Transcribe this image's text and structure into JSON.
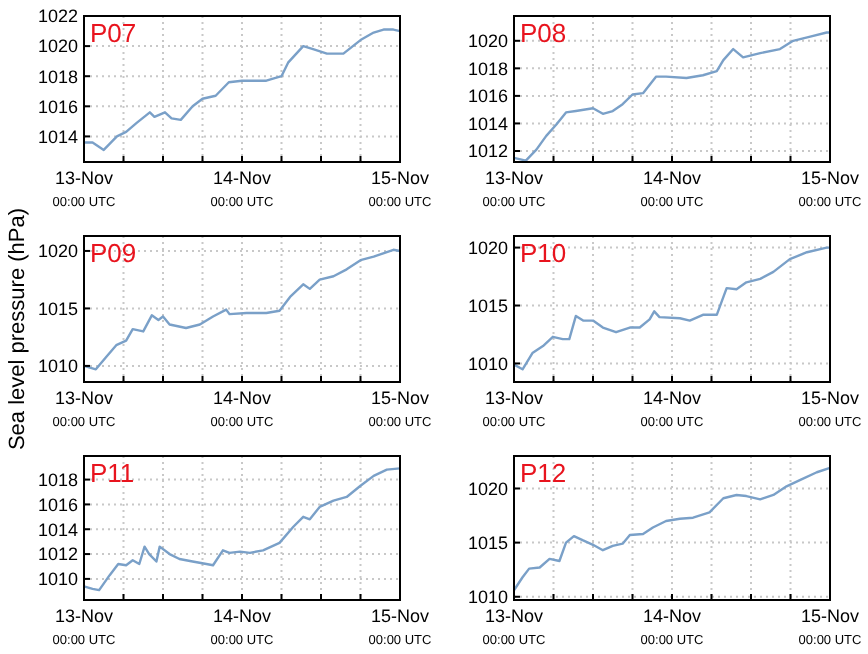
{
  "chart_data": [
    {
      "type": "line",
      "title": "P07",
      "color": "#7aa0c8",
      "grid": true,
      "xlim": [
        "--11-13T00:00",
        "--11-15T00:00"
      ],
      "ylim": [
        1012.3,
        1022
      ],
      "yticks": [
        1014,
        1016,
        1018,
        1020,
        1022
      ],
      "xticks": [
        {
          "value": "--11-13T00:00",
          "label": "13-Nov 00:00 UTC"
        },
        {
          "value": "--11-13T06:00",
          "label": null
        },
        {
          "value": "--11-13T12:00",
          "label": null
        },
        {
          "value": "--11-13T18:00",
          "label": null
        },
        {
          "value": "--11-14T00:00",
          "label": "14-Nov 00:00 UTC"
        },
        {
          "value": "--11-14T06:00",
          "label": null
        },
        {
          "value": "--11-14T12:00",
          "label": null
        },
        {
          "value": "--11-14T18:00",
          "label": null
        },
        {
          "value": "--11-15T00:00",
          "label": "15-Nov 00:00 UTC"
        }
      ],
      "x": [
        "--11-13T00:00",
        "--11-13T01:18",
        "--11-13T03:00",
        "--11-13T05:00",
        "--11-13T06:24",
        "--11-13T08:00",
        "--11-13T10:00",
        "--11-13T10:42",
        "--11-13T12:18",
        "--11-13T13:18",
        "--11-13T14:42",
        "--11-13T16:30",
        "--11-13T18:00",
        "--11-13T20:00",
        "--11-13T22:00",
        "--11-14T00:00",
        "--11-14T03:42",
        "--11-14T06:00",
        "--11-14T07:00",
        "--11-14T09:18",
        "--11-14T10:48",
        "--11-14T12:54",
        "--11-14T15:24",
        "--11-14T18:00",
        "--11-14T20:00",
        "--11-14T21:30",
        "--11-14T23:00",
        "--11-15T00:00"
      ],
      "values": [
        1013.6,
        1013.6,
        1013.1,
        1014,
        1014.3,
        1014.9,
        1015.6,
        1015.3,
        1015.6,
        1015.2,
        1015.1,
        1016,
        1016.5,
        1016.7,
        1017.6,
        1017.7,
        1017.7,
        1018,
        1018.9,
        1020,
        1019.8,
        1019.5,
        1019.5,
        1020.4,
        1020.9,
        1021.1,
        1021.1,
        1021
      ]
    },
    {
      "type": "line",
      "title": "P08",
      "color": "#7aa0c8",
      "grid": true,
      "xlim": [
        "--11-13T00:00",
        "--11-15T00:00"
      ],
      "ylim": [
        1011.2,
        1021.8
      ],
      "yticks": [
        1012,
        1014,
        1016,
        1018,
        1020
      ],
      "xticks": [
        {
          "value": "--11-13T00:00",
          "label": "13-Nov 00:00 UTC"
        },
        {
          "value": "--11-13T06:00",
          "label": null
        },
        {
          "value": "--11-13T12:00",
          "label": null
        },
        {
          "value": "--11-13T18:00",
          "label": null
        },
        {
          "value": "--11-14T00:00",
          "label": "14-Nov 00:00 UTC"
        },
        {
          "value": "--11-14T06:00",
          "label": null
        },
        {
          "value": "--11-14T12:00",
          "label": null
        },
        {
          "value": "--11-14T18:00",
          "label": null
        },
        {
          "value": "--11-15T00:00",
          "label": "15-Nov 00:00 UTC"
        }
      ],
      "x": [
        "--11-13T00:00",
        "--11-13T01:48",
        "--11-13T03:24",
        "--11-13T04:54",
        "--11-13T06:24",
        "--11-13T07:54",
        "--11-13T09:24",
        "--11-13T12:00",
        "--11-13T13:30",
        "--11-13T15:00",
        "--11-13T16:30",
        "--11-13T18:00",
        "--11-13T19:36",
        "--11-13T21:36",
        "--11-13T23:06",
        "--11-14T02:12",
        "--11-14T04:42",
        "--11-14T06:48",
        "--11-14T07:48",
        "--11-14T09:18",
        "--11-14T10:48",
        "--11-14T13:24",
        "--11-14T16:24",
        "--11-14T18:24",
        "--11-14T21:00",
        "--11-14T23:30",
        "--11-15T00:00"
      ],
      "values": [
        1011.5,
        1011.3,
        1012.1,
        1013.1,
        1013.9,
        1014.8,
        1014.9,
        1015.1,
        1014.7,
        1014.9,
        1015.4,
        1016.1,
        1016.2,
        1017.4,
        1017.4,
        1017.3,
        1017.5,
        1017.8,
        1018.6,
        1019.4,
        1018.8,
        1019.1,
        1019.4,
        1020,
        1020.3,
        1020.6,
        1020.6
      ]
    },
    {
      "type": "line",
      "title": "P09",
      "ylabel": "Sea level pressure (hPa)",
      "color": "#7aa0c8",
      "grid": true,
      "xlim": [
        "--11-13T00:00",
        "--11-15T00:00"
      ],
      "ylim": [
        1008.6,
        1021.3
      ],
      "yticks": [
        1010,
        1015,
        1020
      ],
      "xticks": [
        {
          "value": "--11-13T00:00",
          "label": "13-Nov 00:00 UTC"
        },
        {
          "value": "--11-13T06:00",
          "label": null
        },
        {
          "value": "--11-13T12:00",
          "label": null
        },
        {
          "value": "--11-13T18:00",
          "label": null
        },
        {
          "value": "--11-14T00:00",
          "label": "14-Nov 00:00 UTC"
        },
        {
          "value": "--11-14T06:00",
          "label": null
        },
        {
          "value": "--11-14T12:00",
          "label": null
        },
        {
          "value": "--11-14T18:00",
          "label": null
        },
        {
          "value": "--11-15T00:00",
          "label": "15-Nov 00:00 UTC"
        }
      ],
      "x": [
        "--11-13T00:00",
        "--11-13T01:48",
        "--11-13T03:24",
        "--11-13T04:54",
        "--11-13T06:24",
        "--11-13T07:24",
        "--11-13T09:00",
        "--11-13T10:18",
        "--11-13T11:18",
        "--11-13T12:00",
        "--11-13T13:00",
        "--11-13T15:30",
        "--11-13T17:36",
        "--11-13T19:36",
        "--11-13T21:36",
        "--11-13T22:06",
        "--11-14T00:42",
        "--11-14T03:42",
        "--11-14T05:42",
        "--11-14T07:18",
        "--11-14T09:18",
        "--11-14T10:18",
        "--11-14T11:48",
        "--11-14T13:54",
        "--11-14T15:54",
        "--11-14T18:00",
        "--11-14T20:00",
        "--11-14T23:00",
        "--11-15T00:00"
      ],
      "values": [
        1010,
        1009.7,
        1010.8,
        1011.8,
        1012.2,
        1013.2,
        1013,
        1014.4,
        1014,
        1014.3,
        1013.6,
        1013.3,
        1013.6,
        1014.3,
        1014.9,
        1014.5,
        1014.6,
        1014.6,
        1014.8,
        1016,
        1017.1,
        1016.7,
        1017.5,
        1017.8,
        1018.4,
        1019.2,
        1019.5,
        1020.1,
        1020
      ]
    },
    {
      "type": "line",
      "title": "P10",
      "color": "#7aa0c8",
      "grid": true,
      "xlim": [
        "--11-13T00:00",
        "--11-15T00:00"
      ],
      "ylim": [
        1008.4,
        1021
      ],
      "yticks": [
        1010,
        1015,
        1020
      ],
      "xticks": [
        {
          "value": "--11-13T00:00",
          "label": "13-Nov 00:00 UTC"
        },
        {
          "value": "--11-13T06:00",
          "label": null
        },
        {
          "value": "--11-13T12:00",
          "label": null
        },
        {
          "value": "--11-13T18:00",
          "label": null
        },
        {
          "value": "--11-14T00:00",
          "label": "14-Nov 00:00 UTC"
        },
        {
          "value": "--11-14T06:00",
          "label": null
        },
        {
          "value": "--11-14T12:00",
          "label": null
        },
        {
          "value": "--11-14T18:00",
          "label": null
        },
        {
          "value": "--11-15T00:00",
          "label": "15-Nov 00:00 UTC"
        }
      ],
      "x": [
        "--11-13T00:00",
        "--11-13T01:18",
        "--11-13T02:48",
        "--11-13T04:24",
        "--11-13T05:54",
        "--11-13T07:24",
        "--11-13T08:24",
        "--11-13T09:24",
        "--11-13T10:30",
        "--11-13T12:00",
        "--11-13T13:30",
        "--11-13T15:30",
        "--11-13T17:36",
        "--11-13T19:06",
        "--11-13T20:36",
        "--11-13T21:18",
        "--11-13T22:06",
        "--11-14T01:12",
        "--11-14T02:42",
        "--11-14T04:42",
        "--11-14T06:48",
        "--11-14T08:18",
        "--11-14T09:48",
        "--11-14T11:18",
        "--11-14T13:24",
        "--11-14T15:24",
        "--11-14T17:54",
        "--11-14T20:30",
        "--11-14T23:30",
        "--11-15T00:00"
      ],
      "values": [
        1009.9,
        1009.5,
        1010.9,
        1011.5,
        1012.3,
        1012.1,
        1012.1,
        1014.1,
        1013.7,
        1013.7,
        1013.1,
        1012.7,
        1013.1,
        1013.1,
        1013.8,
        1014.5,
        1014,
        1013.9,
        1013.7,
        1014.2,
        1014.2,
        1016.5,
        1016.4,
        1017,
        1017.3,
        1017.9,
        1019,
        1019.6,
        1020,
        1020
      ]
    },
    {
      "type": "line",
      "title": "P11",
      "color": "#7aa0c8",
      "grid": true,
      "xlim": [
        "--11-13T00:00",
        "--11-15T00:00"
      ],
      "ylim": [
        1008.3,
        1019.9
      ],
      "yticks": [
        1010,
        1012,
        1014,
        1016,
        1018
      ],
      "xticks": [
        {
          "value": "--11-13T00:00",
          "label": "13-Nov 00:00 UTC"
        },
        {
          "value": "--11-13T06:00",
          "label": null
        },
        {
          "value": "--11-13T12:00",
          "label": null
        },
        {
          "value": "--11-13T18:00",
          "label": null
        },
        {
          "value": "--11-14T00:00",
          "label": "14-Nov 00:00 UTC"
        },
        {
          "value": "--11-14T06:00",
          "label": null
        },
        {
          "value": "--11-14T12:00",
          "label": null
        },
        {
          "value": "--11-14T18:00",
          "label": null
        },
        {
          "value": "--11-15T00:00",
          "label": "15-Nov 00:00 UTC"
        }
      ],
      "x": [
        "--11-13T00:00",
        "--11-13T01:18",
        "--11-13T02:18",
        "--11-13T03:54",
        "--11-13T05:12",
        "--11-13T06:24",
        "--11-13T07:24",
        "--11-13T08:24",
        "--11-13T09:12",
        "--11-13T09:54",
        "--11-13T11:00",
        "--11-13T11:30",
        "--11-13T13:00",
        "--11-13T14:30",
        "--11-13T16:30",
        "--11-13T18:36",
        "--11-13T19:36",
        "--11-13T21:06",
        "--11-13T22:06",
        "--11-13T23:42",
        "--11-14T01:12",
        "--11-14T03:12",
        "--11-14T05:42",
        "--11-14T07:48",
        "--11-14T09:18",
        "--11-14T10:18",
        "--11-14T11:48",
        "--11-14T13:54",
        "--11-14T15:54",
        "--11-14T18:00",
        "--11-14T20:00",
        "--11-14T22:00",
        "--11-15T00:00"
      ],
      "values": [
        1009.4,
        1009.2,
        1009.1,
        1010.3,
        1011.2,
        1011.1,
        1011.5,
        1011.2,
        1012.6,
        1012,
        1011.4,
        1012.6,
        1012,
        1011.6,
        1011.4,
        1011.2,
        1011.1,
        1012.3,
        1012.1,
        1012.2,
        1012.1,
        1012.3,
        1012.9,
        1014.2,
        1015,
        1014.8,
        1015.8,
        1016.3,
        1016.6,
        1017.5,
        1018.3,
        1018.8,
        1018.9
      ]
    },
    {
      "type": "line",
      "title": "P12",
      "color": "#7aa0c8",
      "grid": true,
      "xlim": [
        "--11-13T00:00",
        "--11-15T00:00"
      ],
      "ylim": [
        1009.7,
        1023
      ],
      "yticks": [
        1010,
        1015,
        1020
      ],
      "xticks": [
        {
          "value": "--11-13T00:00",
          "label": "13-Nov 00:00 UTC"
        },
        {
          "value": "--11-13T06:00",
          "label": null
        },
        {
          "value": "--11-13T12:00",
          "label": null
        },
        {
          "value": "--11-13T18:00",
          "label": null
        },
        {
          "value": "--11-14T00:00",
          "label": "14-Nov 00:00 UTC"
        },
        {
          "value": "--11-14T06:00",
          "label": null
        },
        {
          "value": "--11-14T12:00",
          "label": null
        },
        {
          "value": "--11-14T18:00",
          "label": null
        },
        {
          "value": "--11-15T00:00",
          "label": "15-Nov 00:00 UTC"
        }
      ],
      "x": [
        "--11-13T00:00",
        "--11-13T01:18",
        "--11-13T02:18",
        "--11-13T03:54",
        "--11-13T05:24",
        "--11-13T06:54",
        "--11-13T07:54",
        "--11-13T09:06",
        "--11-13T10:30",
        "--11-13T12:00",
        "--11-13T13:30",
        "--11-13T15:00",
        "--11-13T16:30",
        "--11-13T17:36",
        "--11-13T19:36",
        "--11-13T21:06",
        "--11-13T23:06",
        "--11-14T01:12",
        "--11-14T03:12",
        "--11-14T05:42",
        "--11-14T07:48",
        "--11-14T09:48",
        "--11-14T11:18",
        "--11-14T13:24",
        "--11-14T15:24",
        "--11-14T17:24",
        "--11-14T19:30",
        "--11-14T22:00",
        "--11-15T00:00"
      ],
      "values": [
        1010.6,
        1011.8,
        1012.6,
        1012.7,
        1013.5,
        1013.3,
        1015,
        1015.6,
        1015.2,
        1014.8,
        1014.3,
        1014.7,
        1014.9,
        1015.7,
        1015.8,
        1016.4,
        1017,
        1017.2,
        1017.3,
        1017.8,
        1019.1,
        1019.4,
        1019.3,
        1019,
        1019.4,
        1020.2,
        1020.8,
        1021.5,
        1021.9
      ]
    }
  ]
}
